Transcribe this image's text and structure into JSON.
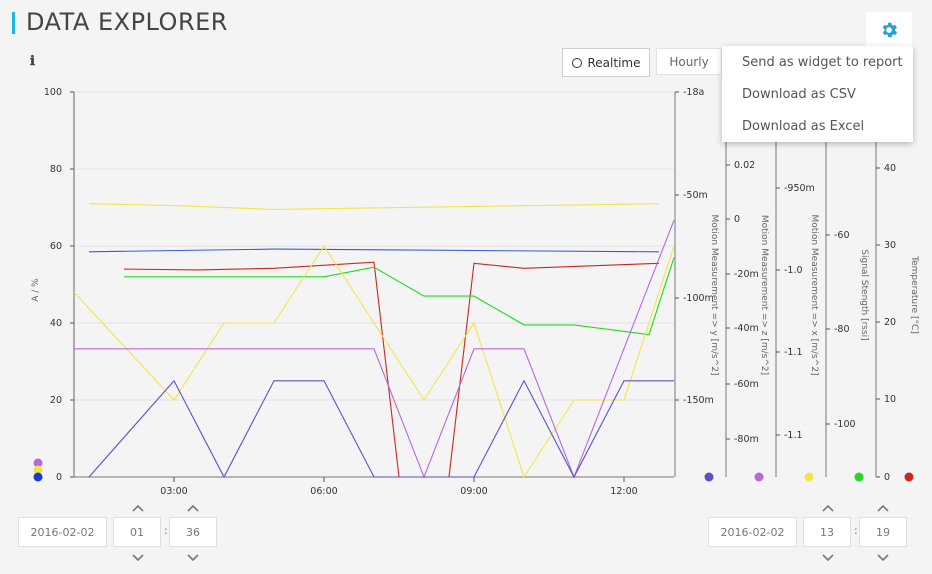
{
  "header": {
    "title": "DATA EXPLORER",
    "info_icon": "ℹ",
    "gear_icon": "gear-icon"
  },
  "toolbar": {
    "realtime_label": "Realtime",
    "hourly_label": "Hourly"
  },
  "menu": {
    "items": [
      "Send as widget to report",
      "Download as CSV",
      "Download as Excel"
    ]
  },
  "colors": {
    "accent": "#1fb6e0",
    "blue": "#3a5ad8",
    "red": "#c8281e",
    "green": "#22d822",
    "yellow": "#f2e44a",
    "purple": "#b56ad8",
    "indigo": "#5a50c8"
  },
  "chart_data": {
    "type": "line",
    "x_ticks": [
      "03:00",
      "06:00",
      "09:00",
      "12:00"
    ],
    "y_axes": [
      {
        "title": "A / %",
        "ticks": [
          "100",
          "80",
          "60",
          "40",
          "20",
          "0"
        ]
      },
      {
        "title": "Motion Measurement => y [m/s^2]",
        "ticks": [
          "-18a",
          "-50m",
          "-100m",
          "-150m"
        ]
      },
      {
        "title": "Motion Measurement => z [m/s^2]",
        "ticks": [
          "0.02",
          "0",
          "-20m",
          "-40m",
          "-60m",
          "-80m"
        ]
      },
      {
        "title": "Motion Measurement => x [m/s^2]",
        "ticks": [
          "-950m",
          "-1.0",
          "-1.1",
          "-1.1"
        ]
      },
      {
        "title": "Signal Stength [rssi]",
        "ticks": [
          "-60",
          "-80",
          "-100"
        ]
      },
      {
        "title": "Temperature [°C]",
        "ticks": [
          "40",
          "30",
          "20",
          "10",
          "0"
        ]
      }
    ],
    "series": [
      {
        "color": "#3a5ad8",
        "x": [
          1.3,
          5,
          12.7
        ],
        "y": [
          58.5,
          59.2,
          58.5
        ]
      },
      {
        "color": "#f2e44a",
        "x": [
          1.3,
          3,
          5,
          12.7
        ],
        "y": [
          71,
          70.5,
          69.5,
          71
        ]
      },
      {
        "color": "#c8281e",
        "x": [
          2,
          3.5,
          5,
          7,
          7.5,
          8.5,
          9,
          10,
          12.7
        ],
        "y": [
          54,
          53.8,
          54.2,
          55.8,
          0,
          0,
          55.5,
          54.2,
          55.5
        ]
      },
      {
        "color": "#22d822",
        "x": [
          2,
          6,
          7,
          8,
          9,
          10,
          11,
          12.5,
          13
        ],
        "y": [
          52,
          52,
          54.5,
          47,
          47,
          39.5,
          39.5,
          37,
          57
        ]
      },
      {
        "color": "#f2e44a",
        "x": [
          1,
          3,
          4,
          5,
          6,
          7,
          8,
          9,
          10,
          11,
          12,
          13
        ],
        "y": [
          48,
          20,
          40,
          40,
          60,
          40,
          20,
          40,
          0,
          20,
          20,
          60
        ]
      },
      {
        "color": "#b56ad8",
        "x": [
          1,
          7,
          8,
          9,
          10,
          11,
          13
        ],
        "y": [
          33.3,
          33.3,
          0,
          33.3,
          33.3,
          0,
          66.7
        ]
      },
      {
        "color": "#5a50c8",
        "x": [
          1.3,
          3,
          4,
          5,
          6,
          7,
          9,
          10,
          11,
          12,
          13
        ],
        "y": [
          0,
          25,
          0,
          25,
          25,
          0,
          0,
          25,
          0,
          25,
          25
        ]
      }
    ],
    "legend_dots_right": [
      "#5a50c8",
      "#b56ad8",
      "#f2e44a",
      "#22d822",
      "#c8281e"
    ]
  },
  "time_controls": {
    "left": {
      "date": "2016-02-02",
      "hour": "01",
      "minute": "36"
    },
    "right": {
      "date": "2016-02-02",
      "hour": "13",
      "minute": "19"
    },
    "separator": ":"
  }
}
